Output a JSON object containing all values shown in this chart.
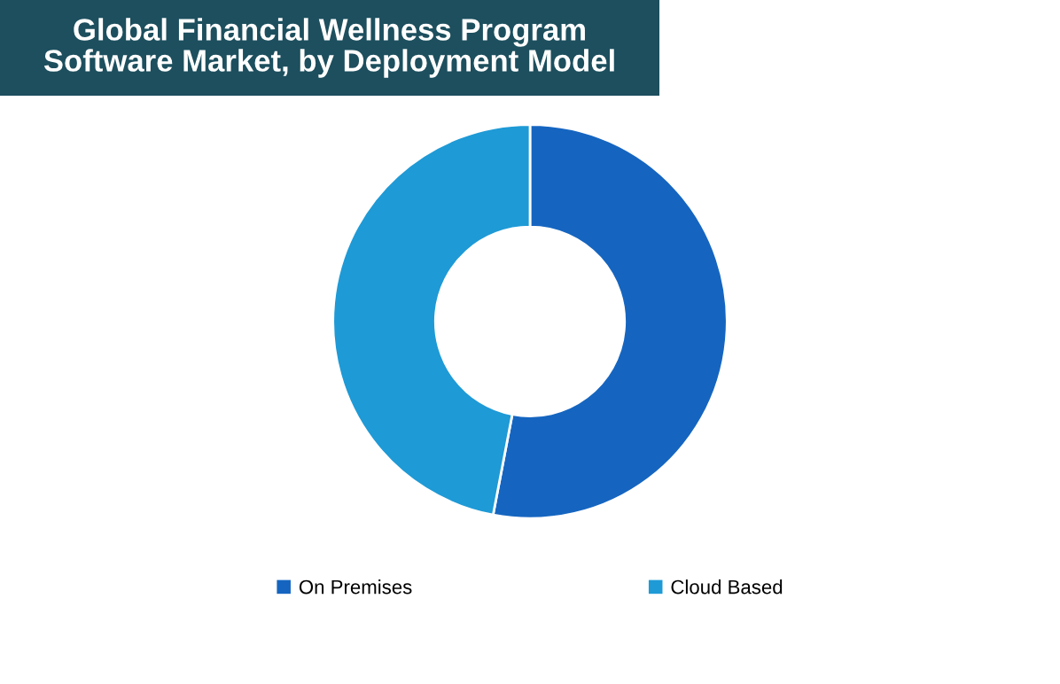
{
  "chart_data": {
    "type": "donut",
    "title": "Global Financial Wellness Program\nSoftware Market, by Deployment Model",
    "categories": [
      "On Premises",
      "Cloud Based"
    ],
    "values": [
      53,
      47
    ],
    "colors": [
      "#1565c0",
      "#1e9ad6"
    ],
    "legend": "bottom"
  }
}
